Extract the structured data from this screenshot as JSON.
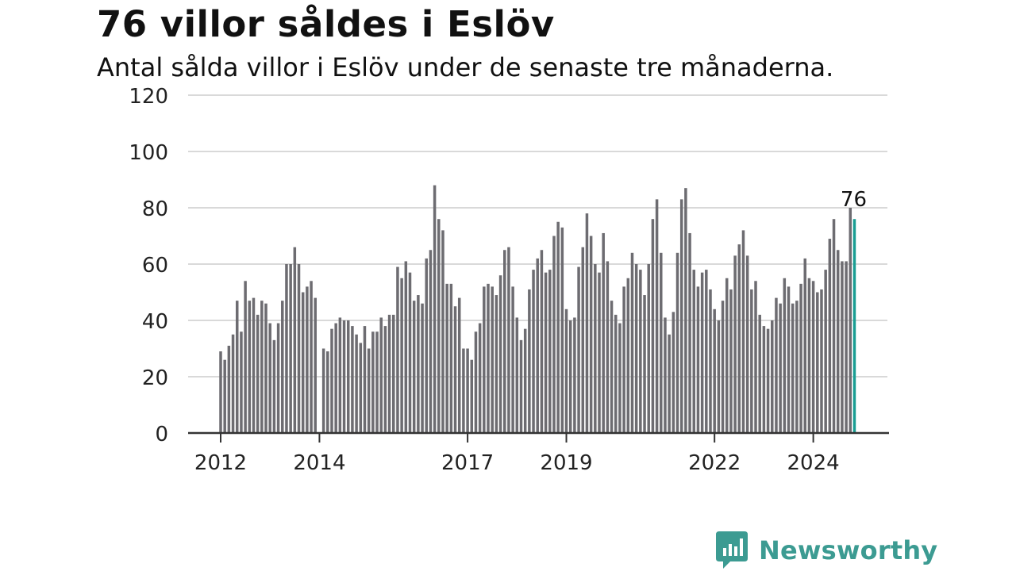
{
  "header": {
    "title": "76 villor såldes i Eslöv",
    "subtitle": "Antal sålda villor i Eslöv under de senaste tre månaderna."
  },
  "brand": {
    "name": "Newsworthy",
    "icon": "newsworthy-logo-icon"
  },
  "colors": {
    "bar": "#6d6c71",
    "highlight": "#1a9e93",
    "grid": "#d9d9d9",
    "axis": "#333333",
    "brand": "#3c9b92"
  },
  "chart_data": {
    "type": "bar",
    "title": "76 villor såldes i Eslöv",
    "subtitle": "Antal sålda villor i Eslöv under de senaste tre månaderna.",
    "ylim": [
      0,
      120
    ],
    "yticks": [
      0,
      20,
      40,
      60,
      80,
      100,
      120
    ],
    "grid": true,
    "x_start": "2012-01",
    "x_end": "2025-01",
    "xticks": [
      {
        "label": "2012",
        "date": "2012-01"
      },
      {
        "label": "2014",
        "date": "2014-01"
      },
      {
        "label": "2017",
        "date": "2017-01"
      },
      {
        "label": "2019",
        "date": "2019-01"
      },
      {
        "label": "2022",
        "date": "2022-01"
      },
      {
        "label": "2024",
        "date": "2024-01"
      }
    ],
    "highlight_label": "76",
    "series": [
      {
        "values": [
          {
            "x": "2012-01",
            "y": 29
          },
          {
            "x": "2012-02",
            "y": 26
          },
          {
            "x": "2012-03",
            "y": 31
          },
          {
            "x": "2012-04",
            "y": 35
          },
          {
            "x": "2012-05",
            "y": 47
          },
          {
            "x": "2012-06",
            "y": 36
          },
          {
            "x": "2012-07",
            "y": 54
          },
          {
            "x": "2012-08",
            "y": 47
          },
          {
            "x": "2012-09",
            "y": 48
          },
          {
            "x": "2012-10",
            "y": 42
          },
          {
            "x": "2012-11",
            "y": 47
          },
          {
            "x": "2012-12",
            "y": 46
          },
          {
            "x": "2013-01",
            "y": 39
          },
          {
            "x": "2013-02",
            "y": 33
          },
          {
            "x": "2013-03",
            "y": 39
          },
          {
            "x": "2013-04",
            "y": 47
          },
          {
            "x": "2013-05",
            "y": 60
          },
          {
            "x": "2013-06",
            "y": 60
          },
          {
            "x": "2013-07",
            "y": 66
          },
          {
            "x": "2013-08",
            "y": 60
          },
          {
            "x": "2013-09",
            "y": 50
          },
          {
            "x": "2013-10",
            "y": 52
          },
          {
            "x": "2013-11",
            "y": 54
          },
          {
            "x": "2013-12",
            "y": 48
          },
          {
            "x": "2014-02",
            "y": 30
          },
          {
            "x": "2014-03",
            "y": 29
          },
          {
            "x": "2014-04",
            "y": 37
          },
          {
            "x": "2014-05",
            "y": 39
          },
          {
            "x": "2014-06",
            "y": 41
          },
          {
            "x": "2014-07",
            "y": 40
          },
          {
            "x": "2014-08",
            "y": 40
          },
          {
            "x": "2014-09",
            "y": 38
          },
          {
            "x": "2014-10",
            "y": 35
          },
          {
            "x": "2014-11",
            "y": 32
          },
          {
            "x": "2014-12",
            "y": 38
          },
          {
            "x": "2015-01",
            "y": 30
          },
          {
            "x": "2015-02",
            "y": 36
          },
          {
            "x": "2015-03",
            "y": 36
          },
          {
            "x": "2015-04",
            "y": 41
          },
          {
            "x": "2015-05",
            "y": 38
          },
          {
            "x": "2015-06",
            "y": 42
          },
          {
            "x": "2015-07",
            "y": 42
          },
          {
            "x": "2015-08",
            "y": 59
          },
          {
            "x": "2015-09",
            "y": 55
          },
          {
            "x": "2015-10",
            "y": 61
          },
          {
            "x": "2015-11",
            "y": 57
          },
          {
            "x": "2015-12",
            "y": 47
          },
          {
            "x": "2016-01",
            "y": 49
          },
          {
            "x": "2016-02",
            "y": 46
          },
          {
            "x": "2016-03",
            "y": 62
          },
          {
            "x": "2016-04",
            "y": 65
          },
          {
            "x": "2016-05",
            "y": 88
          },
          {
            "x": "2016-06",
            "y": 76
          },
          {
            "x": "2016-07",
            "y": 72
          },
          {
            "x": "2016-08",
            "y": 53
          },
          {
            "x": "2016-09",
            "y": 53
          },
          {
            "x": "2016-10",
            "y": 45
          },
          {
            "x": "2016-11",
            "y": 48
          },
          {
            "x": "2016-12",
            "y": 30
          },
          {
            "x": "2017-01",
            "y": 30
          },
          {
            "x": "2017-02",
            "y": 26
          },
          {
            "x": "2017-03",
            "y": 36
          },
          {
            "x": "2017-04",
            "y": 39
          },
          {
            "x": "2017-05",
            "y": 52
          },
          {
            "x": "2017-06",
            "y": 53
          },
          {
            "x": "2017-07",
            "y": 52
          },
          {
            "x": "2017-08",
            "y": 49
          },
          {
            "x": "2017-09",
            "y": 56
          },
          {
            "x": "2017-10",
            "y": 65
          },
          {
            "x": "2017-11",
            "y": 66
          },
          {
            "x": "2017-12",
            "y": 52
          },
          {
            "x": "2018-01",
            "y": 41
          },
          {
            "x": "2018-02",
            "y": 33
          },
          {
            "x": "2018-03",
            "y": 37
          },
          {
            "x": "2018-04",
            "y": 51
          },
          {
            "x": "2018-05",
            "y": 58
          },
          {
            "x": "2018-06",
            "y": 62
          },
          {
            "x": "2018-07",
            "y": 65
          },
          {
            "x": "2018-08",
            "y": 57
          },
          {
            "x": "2018-09",
            "y": 58
          },
          {
            "x": "2018-10",
            "y": 70
          },
          {
            "x": "2018-11",
            "y": 75
          },
          {
            "x": "2018-12",
            "y": 73
          },
          {
            "x": "2019-01",
            "y": 44
          },
          {
            "x": "2019-02",
            "y": 40
          },
          {
            "x": "2019-03",
            "y": 41
          },
          {
            "x": "2019-04",
            "y": 59
          },
          {
            "x": "2019-05",
            "y": 66
          },
          {
            "x": "2019-06",
            "y": 78
          },
          {
            "x": "2019-07",
            "y": 70
          },
          {
            "x": "2019-08",
            "y": 60
          },
          {
            "x": "2019-09",
            "y": 57
          },
          {
            "x": "2019-10",
            "y": 71
          },
          {
            "x": "2019-11",
            "y": 61
          },
          {
            "x": "2019-12",
            "y": 47
          },
          {
            "x": "2020-01",
            "y": 42
          },
          {
            "x": "2020-02",
            "y": 39
          },
          {
            "x": "2020-03",
            "y": 52
          },
          {
            "x": "2020-04",
            "y": 55
          },
          {
            "x": "2020-05",
            "y": 64
          },
          {
            "x": "2020-06",
            "y": 60
          },
          {
            "x": "2020-07",
            "y": 58
          },
          {
            "x": "2020-08",
            "y": 49
          },
          {
            "x": "2020-09",
            "y": 60
          },
          {
            "x": "2020-10",
            "y": 76
          },
          {
            "x": "2020-11",
            "y": 83
          },
          {
            "x": "2020-12",
            "y": 64
          },
          {
            "x": "2021-01",
            "y": 41
          },
          {
            "x": "2021-02",
            "y": 35
          },
          {
            "x": "2021-03",
            "y": 43
          },
          {
            "x": "2021-04",
            "y": 64
          },
          {
            "x": "2021-05",
            "y": 83
          },
          {
            "x": "2021-06",
            "y": 87
          },
          {
            "x": "2021-07",
            "y": 71
          },
          {
            "x": "2021-08",
            "y": 58
          },
          {
            "x": "2021-09",
            "y": 52
          },
          {
            "x": "2021-10",
            "y": 57
          },
          {
            "x": "2021-11",
            "y": 58
          },
          {
            "x": "2021-12",
            "y": 51
          },
          {
            "x": "2022-01",
            "y": 44
          },
          {
            "x": "2022-02",
            "y": 40
          },
          {
            "x": "2022-03",
            "y": 47
          },
          {
            "x": "2022-04",
            "y": 55
          },
          {
            "x": "2022-05",
            "y": 51
          },
          {
            "x": "2022-06",
            "y": 63
          },
          {
            "x": "2022-07",
            "y": 67
          },
          {
            "x": "2022-08",
            "y": 72
          },
          {
            "x": "2022-09",
            "y": 63
          },
          {
            "x": "2022-10",
            "y": 51
          },
          {
            "x": "2022-11",
            "y": 54
          },
          {
            "x": "2022-12",
            "y": 42
          },
          {
            "x": "2023-01",
            "y": 38
          },
          {
            "x": "2023-02",
            "y": 37
          },
          {
            "x": "2023-03",
            "y": 40
          },
          {
            "x": "2023-04",
            "y": 48
          },
          {
            "x": "2023-05",
            "y": 46
          },
          {
            "x": "2023-06",
            "y": 55
          },
          {
            "x": "2023-07",
            "y": 52
          },
          {
            "x": "2023-08",
            "y": 46
          },
          {
            "x": "2023-09",
            "y": 47
          },
          {
            "x": "2023-10",
            "y": 53
          },
          {
            "x": "2023-11",
            "y": 62
          },
          {
            "x": "2023-12",
            "y": 55
          },
          {
            "x": "2024-01",
            "y": 54
          },
          {
            "x": "2024-02",
            "y": 50
          },
          {
            "x": "2024-03",
            "y": 51
          },
          {
            "x": "2024-04",
            "y": 58
          },
          {
            "x": "2024-05",
            "y": 69
          },
          {
            "x": "2024-06",
            "y": 76
          },
          {
            "x": "2024-07",
            "y": 65
          },
          {
            "x": "2024-08",
            "y": 61
          },
          {
            "x": "2024-09",
            "y": 61
          },
          {
            "x": "2024-10",
            "y": 80
          },
          {
            "x": "2024-11",
            "y": 76
          }
        ]
      }
    ]
  }
}
